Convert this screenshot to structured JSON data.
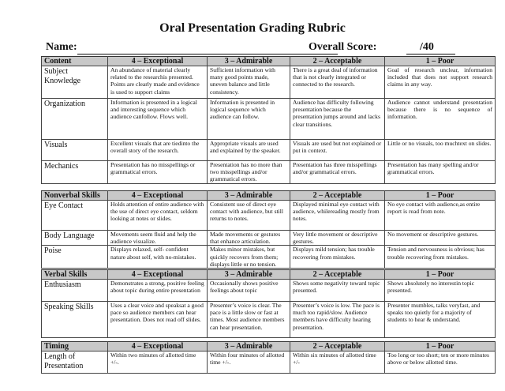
{
  "title": "Oral Presentation Grading Rubric",
  "name_label": "Name:",
  "score_label": "Overall Score:",
  "score_max": "/40",
  "sections": [
    {
      "headers": [
        "Content",
        "4 – Exceptional",
        "3 – Admirable",
        "2 – Acceptable",
        "1 – Poor"
      ],
      "rows": [
        {
          "label": "Subject Knowledge",
          "cells": [
            "An abundance of material clearly related to the researchis presented. Points are clearly made and evidence is used to support claims",
            "Sufficient information with many good points made, uneven balance and little consistency.",
            "There is a great deal of information that is not clearly integrated or connected to the research.",
            "Goal of research unclear, information included that does not support research claims in any way."
          ]
        },
        {
          "label": "Organization",
          "cells": [
            "Information is presented in a logical and interesting sequence which audience canfollow.  Flows well.",
            "Information is presented in logical sequence which audience can follow.",
            "Audience has difficulty following presentation because the presentation jumps around and lacks clear transitions.",
            "Audience cannot understand presentation because there is no sequence of information."
          ]
        },
        {
          "label": "Visuals",
          "cells": [
            "Excellent visuals that are tiedinto the overall story of the research.",
            "Appropriate visuals are used and explained by the speaker.",
            "Visuals are used but not explained or put in context.",
            "Little or no visuals, too muchtext on slides."
          ]
        },
        {
          "label": "Mechanics",
          "cells": [
            "Presentation has no misspellings or grammatical errors.",
            "Presentation has no more than two misspellings and/or grammatical errors.",
            "Presentation has three misspellings and/or grammatical errors.",
            "Presentation has many spelling and/or grammatical errors."
          ]
        }
      ]
    },
    {
      "headers": [
        "Nonverbal Skills",
        "4 – Exceptional",
        "3 – Admirable",
        "2 – Acceptable",
        "1 – Poor"
      ],
      "rows": [
        {
          "label": "Eye Contact",
          "cells": [
            "Holds attention of entire audience with the use of direct eye contact, seldom looking at notes or slides.",
            "Consistent use of direct eye contact with audience, but still returns to notes.",
            "Displayed minimal eye contact with audience, whilereading mostly from notes.",
            "No eye contact with audience,as entire report is read from note."
          ]
        },
        {
          "label": "Body Language",
          "cells": [
            "Movements seem fluid and help the audience visualize.",
            "Made movements or gestures that enhance articulation.",
            "Very little movement or descriptive gestures.",
            "No movement or descriptive gestures."
          ]
        },
        {
          "label": "Poise",
          "cells": [
            "Displays relaxed, self- confident nature about self, with no-mistakes.",
            "Makes minor mistakes, but quickly recovers from them; displays little or no tension.",
            "Displays mild tension; has trouble recovering from mistakes.",
            "Tension and nervousness is obvious; has trouble recovering from mistakes."
          ]
        }
      ]
    },
    {
      "headers": [
        "Verbal Skills",
        "4 – Exceptional",
        "3 – Admirable",
        "2 – Acceptable",
        "1 – Poor"
      ],
      "rows": [
        {
          "label": "Enthusiasm",
          "cells": [
            "Demonstrates a strong, positive feeling about topic during entire presentation",
            "Occasionally shows positive feelings about topic",
            "Shows some negativity toward topic presented.",
            "Shows absolutely no interestin topic presented."
          ]
        },
        {
          "label": "Speaking Skills",
          "cells": [
            "Uses a clear voice and speaksat a good pace so audience members can hear presentation.  Does not read off slides.",
            "Presenter’s voice is clear. The pace is a little slow or fast at times. Most audience members can hear presentation.",
            "Presenter’s voice is low. The pace is much too rapid/slow. Audience members have difficulty hearing presentation.",
            "Presenter mumbles, talks veryfast, and speaks too quietly for a majority of students to hear & understand."
          ]
        }
      ]
    },
    {
      "headers": [
        "Timing",
        "4 – Exceptional",
        "3 – Admirable",
        "2 – Acceptable",
        "1 – Poor"
      ],
      "rows": [
        {
          "label": "Length of Presentation",
          "cells": [
            "Within two minutes of allotted time +/-.",
            "Within four minutes of allotted time +/-.",
            "Within six minutes of allotted time +/-",
            "Too long or too short; ten or more minutes above or below allotted time."
          ]
        }
      ]
    }
  ]
}
